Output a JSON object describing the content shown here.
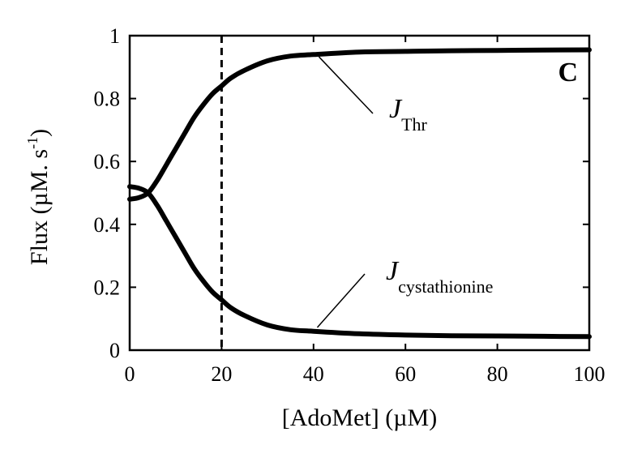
{
  "chart_data": {
    "type": "line",
    "xlabel": "[AdoMet] (µM)",
    "ylabel_main": "Flux (µM. s",
    "ylabel_sup": "-1",
    "ylabel_close": ")",
    "panel_label": "C",
    "xlim": [
      0,
      100
    ],
    "ylim": [
      0,
      1
    ],
    "x_ticks": [
      0,
      20,
      40,
      60,
      80,
      100
    ],
    "x_tick_labels": [
      "0",
      "20",
      "40",
      "60",
      "80",
      "100"
    ],
    "y_ticks": [
      0,
      0.2,
      0.4,
      0.6,
      0.8,
      1
    ],
    "y_tick_labels": [
      "0",
      "0.2",
      "0.4",
      "0.6",
      "0.8",
      "1"
    ],
    "grid": false,
    "vertical_reference_line": {
      "x": 20,
      "style": "dashed"
    },
    "series": [
      {
        "label_main": "J",
        "label_sub": "Thr",
        "x": [
          0,
          2,
          4,
          6,
          8,
          10,
          12,
          14,
          16,
          18,
          20,
          22,
          25,
          30,
          35,
          40,
          50,
          60,
          70,
          80,
          90,
          100
        ],
        "values": [
          0.48,
          0.485,
          0.5,
          0.54,
          0.59,
          0.64,
          0.69,
          0.74,
          0.78,
          0.815,
          0.84,
          0.865,
          0.89,
          0.92,
          0.935,
          0.94,
          0.948,
          0.95,
          0.952,
          0.953,
          0.954,
          0.955
        ],
        "label_anchor_x": 38
      },
      {
        "label_main": "J",
        "label_sub": "cystathionine",
        "x": [
          0,
          2,
          4,
          6,
          8,
          10,
          12,
          14,
          16,
          18,
          20,
          22,
          25,
          30,
          35,
          40,
          50,
          60,
          70,
          80,
          90,
          100
        ],
        "values": [
          0.52,
          0.515,
          0.5,
          0.46,
          0.41,
          0.36,
          0.31,
          0.26,
          0.22,
          0.185,
          0.16,
          0.135,
          0.11,
          0.08,
          0.065,
          0.06,
          0.052,
          0.048,
          0.046,
          0.045,
          0.044,
          0.043
        ],
        "label_anchor_x": 38
      }
    ]
  }
}
